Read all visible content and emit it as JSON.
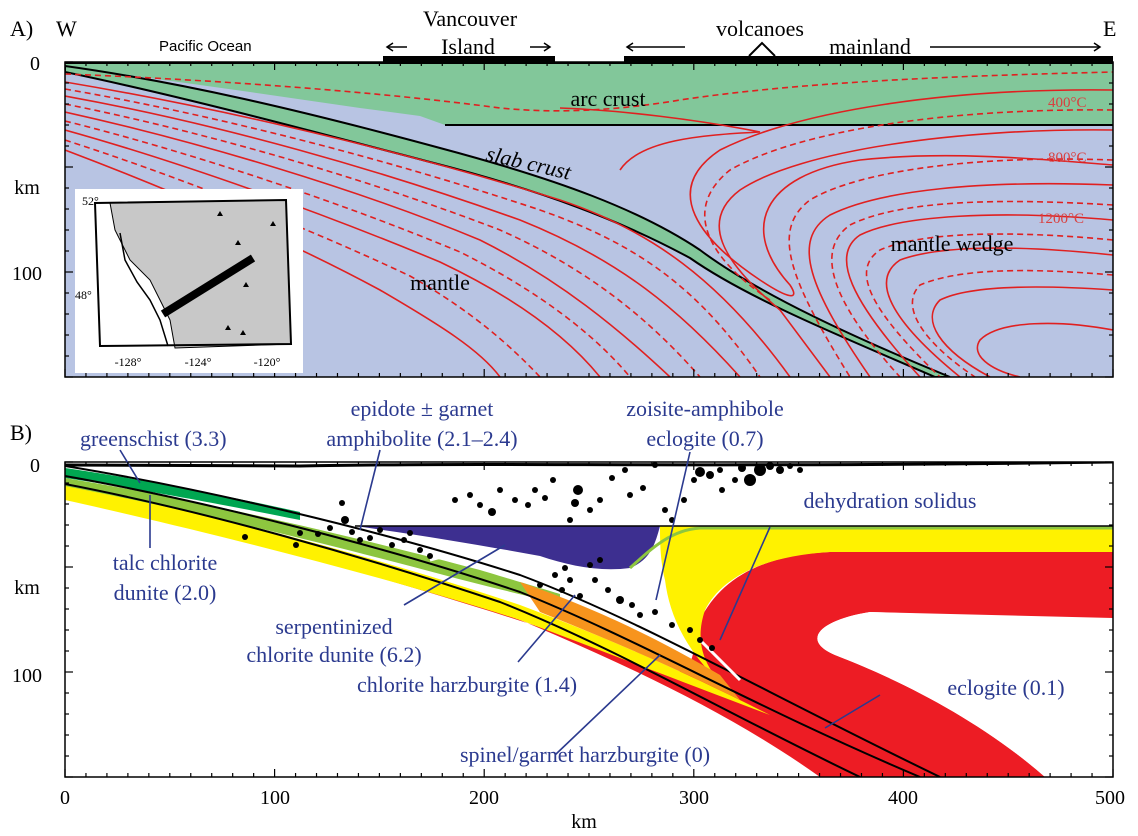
{
  "panel_a": {
    "label": "A)",
    "west": "W",
    "east": "E",
    "pacific": "Pacific Ocean",
    "vancouver_line1": "Vancouver",
    "vancouver_line2": "Island",
    "volcanoes": "volcanoes",
    "mainland": "mainland",
    "arc_crust": "arc crust",
    "slab_crust": "slab crust",
    "mantle": "mantle",
    "mantle_wedge": "mantle wedge",
    "isotherms": [
      "400°C",
      "800°C",
      "1200°C"
    ],
    "y_axis": {
      "unit": "km",
      "ticks": [
        "0",
        "100"
      ]
    },
    "inset_map": {
      "lat_labels": [
        "52°",
        "48°"
      ],
      "lon_labels": [
        "-128°",
        "-124°",
        "-120°"
      ]
    }
  },
  "panel_b": {
    "label": "B)",
    "y_axis": {
      "unit": "km",
      "ticks": [
        "0",
        "100"
      ]
    },
    "x_axis": {
      "label": "km",
      "ticks": [
        "0",
        "100",
        "200",
        "300",
        "400",
        "500"
      ]
    },
    "labels": {
      "greenschist": "greenschist (3.3)",
      "epidote_1": "epidote ± garnet",
      "epidote_2": "amphibolite (2.1–2.4)",
      "zoisite_1": "zoisite-amphibole",
      "zoisite_2": "eclogite (0.7)",
      "dehydration": "dehydration solidus",
      "talc_1": "talc chlorite",
      "talc_2": "dunite (2.0)",
      "serp_1": "serpentinized",
      "serp_2": "chlorite dunite (6.2)",
      "chlorite_harz": "chlorite harzburgite (1.4)",
      "eclogite": "eclogite (0.1)",
      "spinel": "spinel/garnet harzburgite (0)"
    }
  },
  "colors": {
    "mantle_bg": "#b8c4e3",
    "arc_crust": "#82c79a",
    "isotherm": "#e02020",
    "greenschist": "#00a651",
    "amphibolite": "#8dc63f",
    "eclogite_orange": "#f7941d",
    "yellow": "#fff200",
    "red": "#ed1c24",
    "purple": "#3d2f90",
    "label_blue": "#2b3a8f"
  }
}
